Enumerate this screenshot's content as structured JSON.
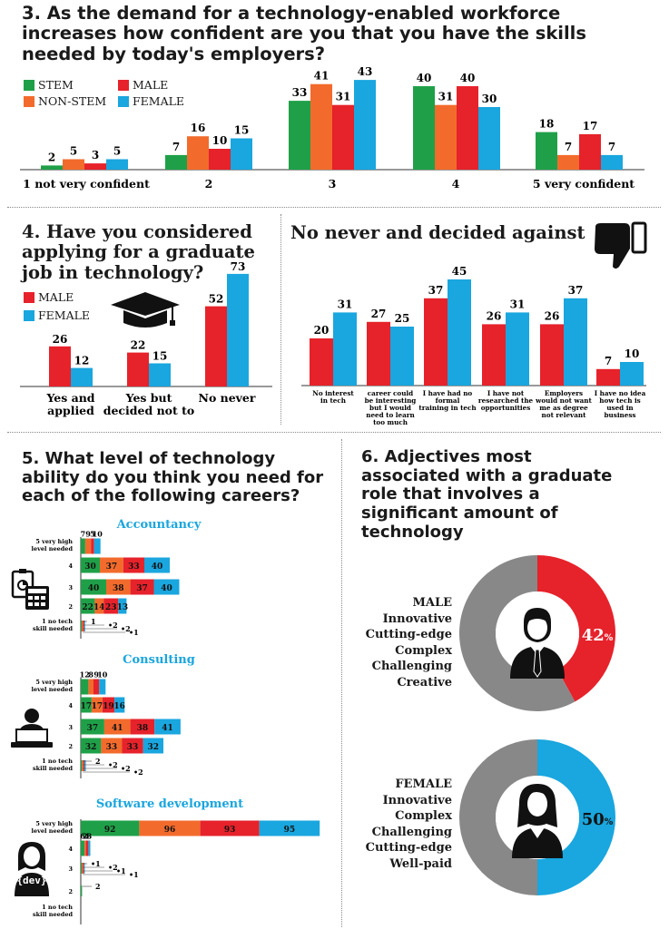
{
  "colors": {
    "stem": "#1fa048",
    "nonstem": "#f26b2c",
    "male": "#e6222b",
    "female": "#1aa6de",
    "gray": "#888888"
  },
  "q3": {
    "title": "3. As the demand for a technology-enabled workforce increases how confident are you that you have the skills needed by today's employers?",
    "legend": [
      "STEM",
      "MALE",
      "NON-STEM",
      "FEMALE"
    ]
  },
  "q4": {
    "title": "4. Have you considered applying for a graduate job in technology?",
    "legend": [
      "MALE",
      "FEMALE"
    ]
  },
  "q4b": {
    "title": "No never and decided against"
  },
  "q5": {
    "title": "5. What level of technology ability do you think you need for each of the following careers?"
  },
  "q6": {
    "title": "6. Adjectives most associated with a graduate role that involves a significant amount of technology",
    "male": {
      "label": "MALE",
      "adjectives": [
        "Innovative",
        "Cutting-edge",
        "Complex",
        "Challenging",
        "Creative"
      ],
      "percent": "42",
      "unit": "%"
    },
    "female": {
      "label": "FEMALE",
      "adjectives": [
        "Innovative",
        "Complex",
        "Challenging",
        "Cutting-edge",
        "Well-paid"
      ],
      "percent": "50",
      "unit": "%"
    },
    "dev_label": "{dev}"
  },
  "chart_data": [
    {
      "id": "q3",
      "type": "bar",
      "categories": [
        "1 not very confident",
        "2",
        "3",
        "4",
        "5 very confident"
      ],
      "series": [
        {
          "name": "STEM",
          "values": [
            2,
            7,
            33,
            40,
            18
          ]
        },
        {
          "name": "NON-STEM",
          "values": [
            5,
            16,
            41,
            31,
            7
          ]
        },
        {
          "name": "MALE",
          "values": [
            3,
            10,
            31,
            40,
            17
          ]
        },
        {
          "name": "FEMALE",
          "values": [
            5,
            15,
            43,
            30,
            7
          ]
        }
      ]
    },
    {
      "id": "q4",
      "type": "bar",
      "categories": [
        "Yes and applied",
        "Yes but decided not to",
        "No never"
      ],
      "series": [
        {
          "name": "MALE",
          "values": [
            26,
            22,
            52
          ]
        },
        {
          "name": "FEMALE",
          "values": [
            12,
            15,
            73
          ]
        }
      ]
    },
    {
      "id": "q4b",
      "type": "bar",
      "title": "No never and decided against",
      "categories": [
        "No interest in tech",
        "career could be interesting but I would need to learn too much",
        "I have had no formal training in tech",
        "I have not researched the opportunities",
        "Employers would not want me as degree not relevant",
        "I have no idea how tech is used in business"
      ],
      "series": [
        {
          "name": "MALE",
          "values": [
            20,
            27,
            37,
            26,
            26,
            7
          ]
        },
        {
          "name": "FEMALE",
          "values": [
            31,
            25,
            45,
            31,
            37,
            10
          ]
        }
      ]
    },
    {
      "id": "q5",
      "type": "bar",
      "orientation": "horizontal-stacked",
      "series_names": [
        "STEM",
        "NON-STEM",
        "MALE",
        "FEMALE"
      ],
      "groups": [
        {
          "title": "Accountancy",
          "rows": [
            {
              "label": "5 very high level needed",
              "values": [
                7,
                9,
                5,
                10
              ]
            },
            {
              "label": "4",
              "values": [
                30,
                37,
                33,
                40
              ]
            },
            {
              "label": "3",
              "values": [
                40,
                38,
                37,
                40
              ]
            },
            {
              "label": "2",
              "values": [
                22,
                14,
                23,
                13
              ]
            },
            {
              "label": "1 no tech skill needed",
              "values": [
                1,
                2,
                2,
                1
              ]
            }
          ]
        },
        {
          "title": "Consulting",
          "rows": [
            {
              "label": "5 very high level needed",
              "values": [
                12,
                8,
                9,
                10
              ]
            },
            {
              "label": "4",
              "values": [
                17,
                17,
                19,
                16
              ]
            },
            {
              "label": "3",
              "values": [
                37,
                41,
                38,
                41
              ]
            },
            {
              "label": "2",
              "values": [
                32,
                33,
                33,
                32
              ]
            },
            {
              "label": "1 no tech skill needed",
              "values": [
                2,
                2,
                2,
                2
              ]
            }
          ]
        },
        {
          "title": "Software development",
          "rows": [
            {
              "label": "5 very high level needed",
              "values": [
                92,
                96,
                93,
                95
              ]
            },
            {
              "label": "4",
              "values": [
                6,
                2,
                4,
                3
              ]
            },
            {
              "label": "3",
              "values": [
                1,
                2,
                1,
                1
              ]
            },
            {
              "label": "2",
              "values": [
                2,
                0,
                0,
                0
              ]
            },
            {
              "label": "1 no tech skill needed",
              "values": [
                0,
                0,
                0,
                0
              ]
            }
          ]
        }
      ]
    },
    {
      "id": "q6-male",
      "type": "pie",
      "title": "MALE",
      "categories": [
        "MALE",
        "other"
      ],
      "values": [
        42,
        58
      ]
    },
    {
      "id": "q6-female",
      "type": "pie",
      "title": "FEMALE",
      "categories": [
        "FEMALE",
        "other"
      ],
      "values": [
        50,
        50
      ]
    }
  ]
}
